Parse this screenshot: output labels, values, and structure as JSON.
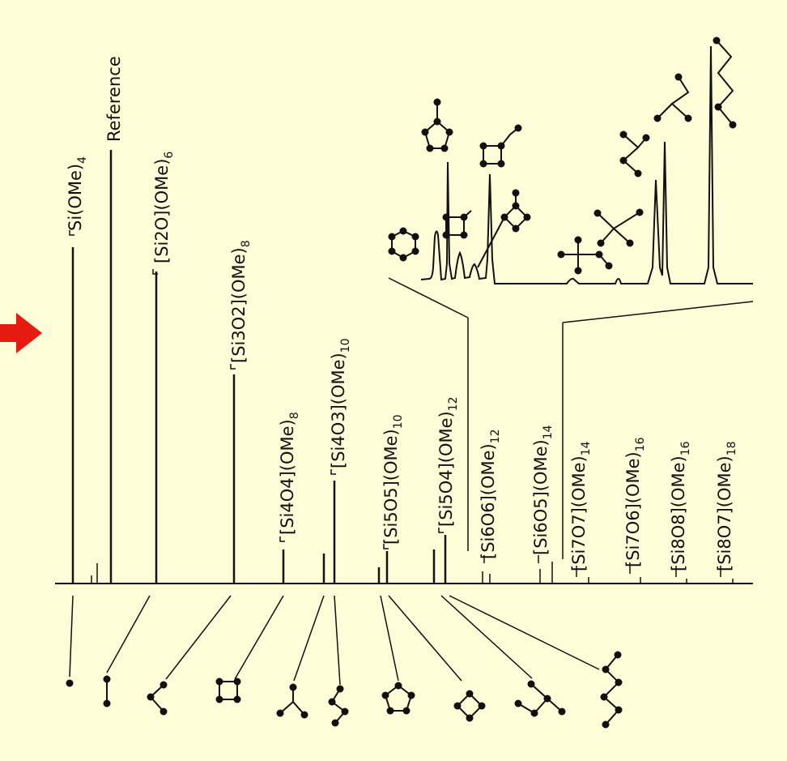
{
  "page": {
    "background": "#fffdd8",
    "arrow_color": "#e51a10"
  },
  "labels": [
    {
      "id": "l-si-ome4",
      "text": "Si(OMe)",
      "sub": "4"
    },
    {
      "id": "l-reference",
      "text": "Reference",
      "sub": ""
    },
    {
      "id": "l-si2o",
      "text": "[Si2O](OMe)",
      "sub": "6"
    },
    {
      "id": "l-si3o2",
      "text": "[Si3O2](OMe)",
      "sub": "8"
    },
    {
      "id": "l-si4o4",
      "text": "[Si4O4](OMe)",
      "sub": "8"
    },
    {
      "id": "l-si4o3",
      "text": "[Si4O3](OMe)",
      "sub": "10"
    },
    {
      "id": "l-si5o5",
      "text": "[Si5O5](OMe)",
      "sub": "10"
    },
    {
      "id": "l-si5o4",
      "text": "[Si5O4](OMe)",
      "sub": "12"
    },
    {
      "id": "l-si6o6",
      "text": "[Si6O6](OMe)",
      "sub": "12"
    },
    {
      "id": "l-si6o5",
      "text": "[Si6O5](OMe)",
      "sub": "14"
    },
    {
      "id": "l-si7o7",
      "text": "[Si7O7](OMe)",
      "sub": "14"
    },
    {
      "id": "l-si7o6",
      "text": "[Si7O6](OMe)",
      "sub": "16"
    },
    {
      "id": "l-si8o8",
      "text": "[Si8O8](OMe)",
      "sub": "16"
    },
    {
      "id": "l-si8o7",
      "text": "[Si8O7](OMe)",
      "sub": "18"
    }
  ]
}
